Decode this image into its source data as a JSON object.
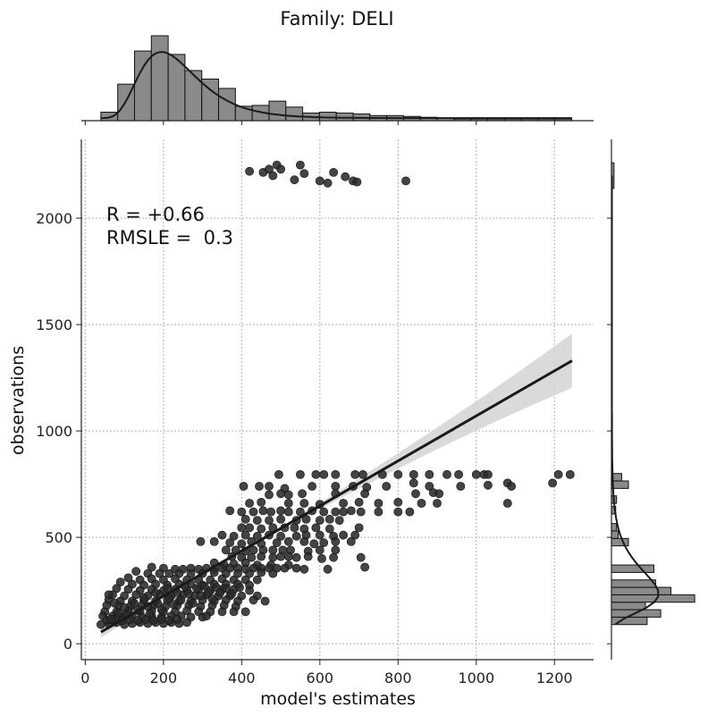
{
  "chart_data": {
    "type": "scatter",
    "title": "Family: DELI",
    "xlabel": "model's estimates",
    "ylabel": "observations",
    "xlim": [
      -10,
      1300
    ],
    "ylim": [
      -75,
      2370
    ],
    "xticks": [
      0,
      200,
      400,
      600,
      800,
      1000,
      1200
    ],
    "yticks": [
      0,
      500,
      1000,
      1500,
      2000
    ],
    "grid": true,
    "annotations": [
      "R = +0.66",
      "RMSLE =  0.3"
    ],
    "regression": {
      "x": [
        40,
        1245
      ],
      "y": [
        55,
        1330
      ],
      "ci_upper_end": 1460,
      "ci_lower_end": 1205
    },
    "points": [
      [
        420,
        2220
      ],
      [
        455,
        2215
      ],
      [
        470,
        2230
      ],
      [
        480,
        2200
      ],
      [
        490,
        2250
      ],
      [
        500,
        2230
      ],
      [
        535,
        2180
      ],
      [
        550,
        2250
      ],
      [
        560,
        2210
      ],
      [
        600,
        2175
      ],
      [
        620,
        2165
      ],
      [
        635,
        2215
      ],
      [
        665,
        2195
      ],
      [
        685,
        2175
      ],
      [
        695,
        2170
      ],
      [
        820,
        2175
      ],
      [
        495,
        795
      ],
      [
        550,
        795
      ],
      [
        590,
        795
      ],
      [
        610,
        795
      ],
      [
        640,
        795
      ],
      [
        690,
        795
      ],
      [
        710,
        795
      ],
      [
        760,
        795
      ],
      [
        800,
        795
      ],
      [
        840,
        795
      ],
      [
        880,
        795
      ],
      [
        925,
        795
      ],
      [
        955,
        795
      ],
      [
        1000,
        795
      ],
      [
        1020,
        795
      ],
      [
        1030,
        795
      ],
      [
        1210,
        795
      ],
      [
        1240,
        795
      ],
      [
        405,
        740
      ],
      [
        445,
        740
      ],
      [
        470,
        740
      ],
      [
        510,
        730
      ],
      [
        580,
        740
      ],
      [
        640,
        740
      ],
      [
        685,
        740
      ],
      [
        720,
        735
      ],
      [
        770,
        740
      ],
      [
        840,
        755
      ],
      [
        880,
        740
      ],
      [
        960,
        740
      ],
      [
        1030,
        745
      ],
      [
        1080,
        755
      ],
      [
        1090,
        740
      ],
      [
        1195,
        755
      ],
      [
        470,
        700
      ],
      [
        500,
        705
      ],
      [
        520,
        700
      ],
      [
        555,
        705
      ],
      [
        640,
        705
      ],
      [
        715,
        705
      ],
      [
        845,
        705
      ],
      [
        890,
        710
      ],
      [
        905,
        705
      ],
      [
        420,
        660
      ],
      [
        450,
        665
      ],
      [
        520,
        660
      ],
      [
        560,
        660
      ],
      [
        600,
        655
      ],
      [
        660,
        660
      ],
      [
        700,
        665
      ],
      [
        750,
        660
      ],
      [
        800,
        665
      ],
      [
        860,
        660
      ],
      [
        900,
        660
      ],
      [
        1080,
        660
      ],
      [
        370,
        625
      ],
      [
        400,
        620
      ],
      [
        430,
        620
      ],
      [
        455,
        625
      ],
      [
        475,
        620
      ],
      [
        500,
        625
      ],
      [
        520,
        620
      ],
      [
        550,
        620
      ],
      [
        580,
        625
      ],
      [
        610,
        620
      ],
      [
        640,
        620
      ],
      [
        660,
        620
      ],
      [
        680,
        625
      ],
      [
        705,
        620
      ],
      [
        750,
        620
      ],
      [
        800,
        620
      ],
      [
        830,
        620
      ],
      [
        410,
        585
      ],
      [
        440,
        580
      ],
      [
        470,
        580
      ],
      [
        500,
        585
      ],
      [
        540,
        580
      ],
      [
        565,
        585
      ],
      [
        600,
        580
      ],
      [
        625,
        585
      ],
      [
        650,
        580
      ],
      [
        400,
        545
      ],
      [
        420,
        545
      ],
      [
        450,
        540
      ],
      [
        480,
        545
      ],
      [
        510,
        545
      ],
      [
        535,
        545
      ],
      [
        560,
        540
      ],
      [
        590,
        545
      ],
      [
        625,
        540
      ],
      [
        700,
        545
      ],
      [
        350,
        510
      ],
      [
        380,
        505
      ],
      [
        410,
        510
      ],
      [
        440,
        505
      ],
      [
        470,
        510
      ],
      [
        500,
        505
      ],
      [
        540,
        505
      ],
      [
        565,
        510
      ],
      [
        600,
        510
      ],
      [
        635,
        505
      ],
      [
        660,
        510
      ],
      [
        690,
        510
      ],
      [
        295,
        480
      ],
      [
        330,
        480
      ],
      [
        370,
        475
      ],
      [
        400,
        470
      ],
      [
        425,
        480
      ],
      [
        450,
        470
      ],
      [
        490,
        475
      ],
      [
        520,
        480
      ],
      [
        560,
        480
      ],
      [
        585,
        470
      ],
      [
        610,
        475
      ],
      [
        640,
        480
      ],
      [
        680,
        480
      ],
      [
        360,
        440
      ],
      [
        385,
        440
      ],
      [
        410,
        435
      ],
      [
        430,
        440
      ],
      [
        455,
        440
      ],
      [
        480,
        440
      ],
      [
        505,
        440
      ],
      [
        525,
        440
      ],
      [
        570,
        435
      ],
      [
        600,
        440
      ],
      [
        640,
        440
      ],
      [
        375,
        410
      ],
      [
        400,
        405
      ],
      [
        425,
        405
      ],
      [
        450,
        410
      ],
      [
        480,
        405
      ],
      [
        500,
        410
      ],
      [
        520,
        410
      ],
      [
        540,
        405
      ],
      [
        570,
        410
      ],
      [
        605,
        400
      ],
      [
        635,
        405
      ],
      [
        705,
        405
      ],
      [
        330,
        380
      ],
      [
        355,
        370
      ],
      [
        380,
        375
      ],
      [
        410,
        380
      ],
      [
        440,
        370
      ],
      [
        475,
        370
      ],
      [
        520,
        370
      ],
      [
        560,
        350
      ],
      [
        620,
        350
      ],
      [
        715,
        360
      ],
      [
        170,
        360
      ],
      [
        200,
        355
      ],
      [
        230,
        350
      ],
      [
        250,
        350
      ],
      [
        270,
        355
      ],
      [
        290,
        350
      ],
      [
        310,
        355
      ],
      [
        330,
        350
      ],
      [
        350,
        355
      ],
      [
        370,
        355
      ],
      [
        390,
        355
      ],
      [
        410,
        350
      ],
      [
        430,
        355
      ],
      [
        450,
        355
      ],
      [
        470,
        355
      ],
      [
        490,
        355
      ],
      [
        510,
        355
      ],
      [
        540,
        355
      ],
      [
        130,
        340
      ],
      [
        160,
        330
      ],
      [
        190,
        330
      ],
      [
        215,
        330
      ],
      [
        240,
        330
      ],
      [
        270,
        330
      ],
      [
        300,
        330
      ],
      [
        330,
        335
      ],
      [
        360,
        330
      ],
      [
        390,
        330
      ],
      [
        420,
        330
      ],
      [
        450,
        335
      ],
      [
        480,
        330
      ],
      [
        110,
        310
      ],
      [
        140,
        300
      ],
      [
        170,
        305
      ],
      [
        200,
        300
      ],
      [
        230,
        305
      ],
      [
        260,
        300
      ],
      [
        290,
        300
      ],
      [
        320,
        300
      ],
      [
        350,
        305
      ],
      [
        380,
        300
      ],
      [
        410,
        300
      ],
      [
        440,
        300
      ],
      [
        90,
        290
      ],
      [
        120,
        280
      ],
      [
        150,
        275
      ],
      [
        180,
        280
      ],
      [
        210,
        275
      ],
      [
        240,
        280
      ],
      [
        270,
        280
      ],
      [
        300,
        275
      ],
      [
        330,
        280
      ],
      [
        360,
        280
      ],
      [
        390,
        280
      ],
      [
        420,
        275
      ],
      [
        80,
        260
      ],
      [
        110,
        255
      ],
      [
        140,
        250
      ],
      [
        170,
        255
      ],
      [
        200,
        250
      ],
      [
        230,
        255
      ],
      [
        260,
        250
      ],
      [
        290,
        255
      ],
      [
        320,
        250
      ],
      [
        350,
        255
      ],
      [
        380,
        255
      ],
      [
        420,
        250
      ],
      [
        70,
        230
      ],
      [
        100,
        225
      ],
      [
        130,
        230
      ],
      [
        160,
        225
      ],
      [
        190,
        230
      ],
      [
        220,
        225
      ],
      [
        250,
        230
      ],
      [
        280,
        225
      ],
      [
        310,
        230
      ],
      [
        340,
        225
      ],
      [
        370,
        225
      ],
      [
        400,
        225
      ],
      [
        440,
        225
      ],
      [
        60,
        205
      ],
      [
        90,
        200
      ],
      [
        120,
        200
      ],
      [
        150,
        205
      ],
      [
        180,
        200
      ],
      [
        210,
        205
      ],
      [
        240,
        200
      ],
      [
        270,
        200
      ],
      [
        300,
        205
      ],
      [
        330,
        200
      ],
      [
        360,
        205
      ],
      [
        390,
        200
      ],
      [
        430,
        205
      ],
      [
        460,
        200
      ],
      [
        55,
        180
      ],
      [
        85,
        180
      ],
      [
        115,
        175
      ],
      [
        145,
        180
      ],
      [
        175,
        180
      ],
      [
        205,
        175
      ],
      [
        235,
        180
      ],
      [
        265,
        180
      ],
      [
        295,
        175
      ],
      [
        325,
        180
      ],
      [
        355,
        180
      ],
      [
        385,
        175
      ],
      [
        50,
        150
      ],
      [
        80,
        150
      ],
      [
        110,
        155
      ],
      [
        140,
        150
      ],
      [
        170,
        155
      ],
      [
        200,
        150
      ],
      [
        230,
        150
      ],
      [
        260,
        155
      ],
      [
        290,
        150
      ],
      [
        320,
        150
      ],
      [
        350,
        150
      ],
      [
        380,
        150
      ],
      [
        410,
        150
      ],
      [
        45,
        130
      ],
      [
        70,
        130
      ],
      [
        95,
        125
      ],
      [
        120,
        130
      ],
      [
        145,
        125
      ],
      [
        170,
        130
      ],
      [
        195,
        125
      ],
      [
        220,
        130
      ],
      [
        245,
        130
      ],
      [
        270,
        125
      ],
      [
        300,
        125
      ],
      [
        310,
        130
      ],
      [
        40,
        90
      ],
      [
        60,
        95
      ],
      [
        80,
        100
      ],
      [
        100,
        90
      ],
      [
        120,
        95
      ],
      [
        140,
        100
      ],
      [
        160,
        95
      ],
      [
        180,
        100
      ],
      [
        200,
        95
      ],
      [
        220,
        100
      ],
      [
        240,
        95
      ],
      [
        260,
        100
      ],
      [
        55,
        110
      ],
      [
        75,
        115
      ],
      [
        95,
        110
      ],
      [
        115,
        115
      ],
      [
        135,
        110
      ],
      [
        155,
        115
      ],
      [
        175,
        110
      ],
      [
        195,
        115
      ],
      [
        215,
        110
      ],
      [
        235,
        115
      ],
      [
        60,
        230
      ],
      [
        65,
        115
      ],
      [
        75,
        190
      ],
      [
        85,
        145
      ],
      [
        100,
        170
      ],
      [
        105,
        135
      ],
      [
        125,
        190
      ],
      [
        135,
        160
      ],
      [
        150,
        215
      ],
      [
        160,
        175
      ],
      [
        165,
        140
      ],
      [
        180,
        240
      ],
      [
        185,
        190
      ],
      [
        195,
        160
      ],
      [
        210,
        260
      ],
      [
        215,
        215
      ],
      [
        225,
        185
      ],
      [
        235,
        240
      ],
      [
        245,
        205
      ],
      [
        255,
        270
      ],
      [
        265,
        235
      ],
      [
        275,
        190
      ],
      [
        285,
        260
      ],
      [
        295,
        225
      ],
      [
        305,
        270
      ],
      [
        315,
        240
      ],
      [
        325,
        210
      ],
      [
        335,
        265
      ],
      [
        345,
        240
      ],
      [
        360,
        260
      ],
      [
        375,
        235
      ],
      [
        395,
        265
      ]
    ],
    "x_hist": {
      "bin_start": 40,
      "bin_width": 43,
      "heights": [
        0.1,
        0.43,
        0.82,
        1.0,
        0.78,
        0.59,
        0.49,
        0.38,
        0.17,
        0.18,
        0.23,
        0.16,
        0.09,
        0.1,
        0.09,
        0.08,
        0.06,
        0.06,
        0.05,
        0.04,
        0.03,
        0.02,
        0.02,
        0.02,
        0.02,
        0.02,
        0.02,
        0.02
      ],
      "kde_peak_x": 195
    },
    "y_hist": {
      "bins": [
        [
          90,
          125,
          0.42
        ],
        [
          125,
          160,
          0.58
        ],
        [
          160,
          195,
          0.4
        ],
        [
          195,
          230,
          0.98
        ],
        [
          230,
          265,
          0.7
        ],
        [
          265,
          300,
          0.52
        ],
        [
          335,
          370,
          0.5
        ],
        [
          460,
          495,
          0.2
        ],
        [
          495,
          530,
          0.08
        ],
        [
          530,
          565,
          0.06
        ],
        [
          610,
          645,
          0.05
        ],
        [
          660,
          695,
          0.06
        ],
        [
          730,
          765,
          0.2
        ],
        [
          765,
          800,
          0.12
        ],
        [
          2140,
          2260,
          0.03
        ]
      ]
    }
  }
}
